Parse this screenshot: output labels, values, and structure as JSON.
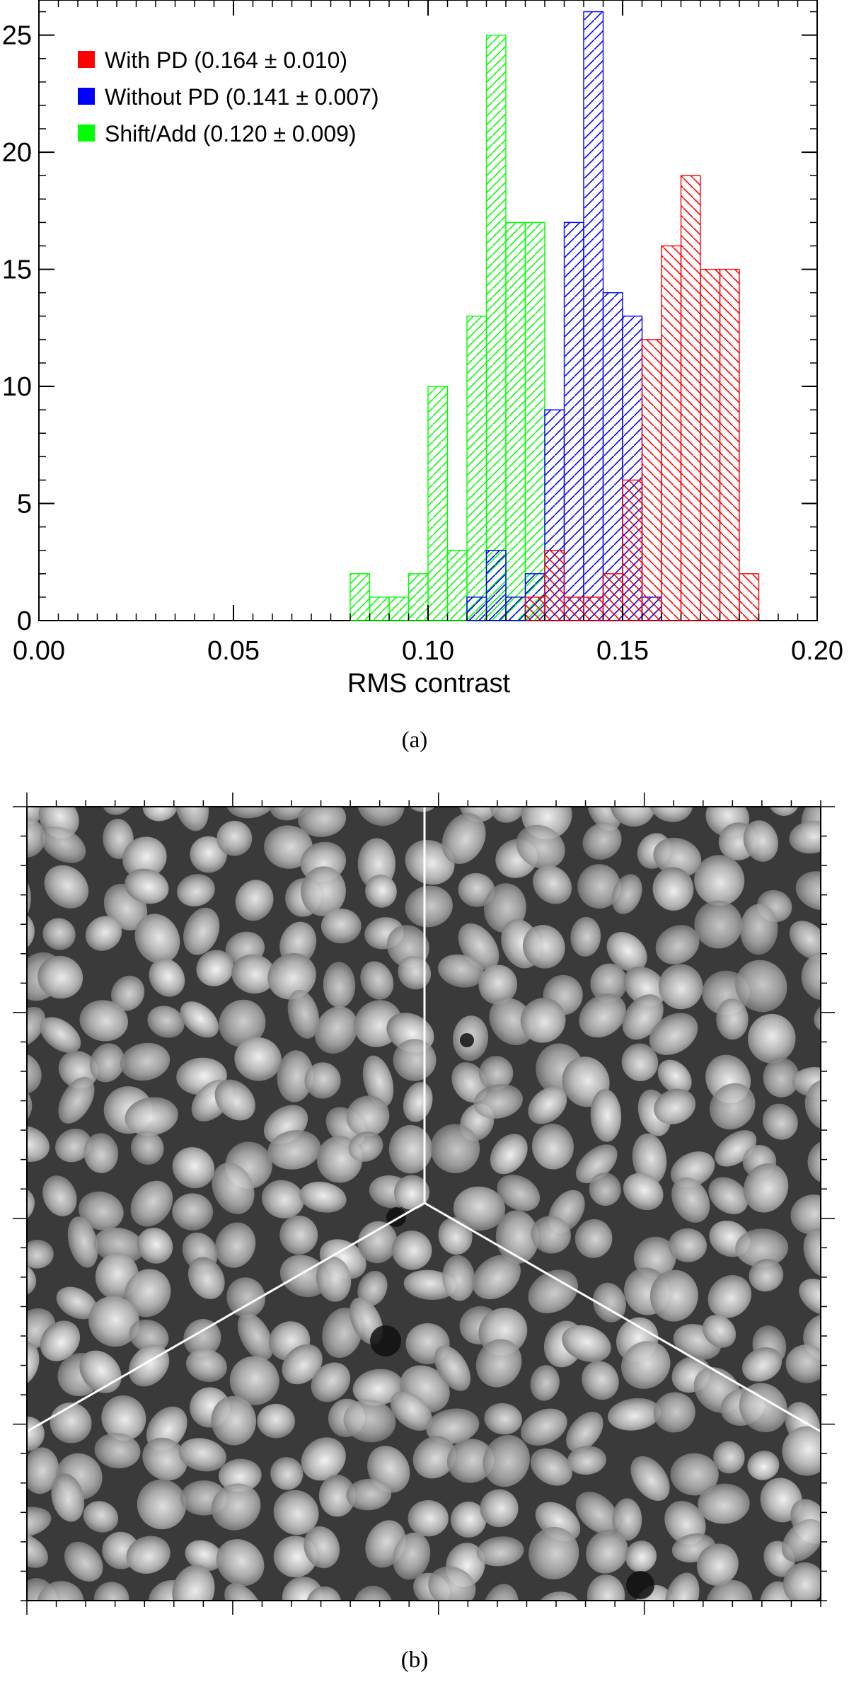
{
  "panel_a_caption": "(a)",
  "panel_b_caption": "(b)",
  "colors": {
    "with_pd": "#ff0000",
    "without_pd": "#0000ff",
    "shift_add": "#00ff00"
  },
  "chart_data": {
    "type": "bar",
    "subtype": "histogram",
    "xlabel": "RMS contrast",
    "ylabel": "",
    "xlim": [
      0.0,
      0.2
    ],
    "ylim": [
      0,
      26.5
    ],
    "x_ticks": [
      "0.00",
      "0.05",
      "0.10",
      "0.15",
      "0.20"
    ],
    "x_tick_values": [
      0.0,
      0.05,
      0.1,
      0.15,
      0.2
    ],
    "y_ticks": [
      "0",
      "5",
      "10",
      "15",
      "20",
      "25"
    ],
    "y_tick_values": [
      0,
      5,
      10,
      15,
      20,
      25
    ],
    "bin_width": 0.005,
    "legend_position": "top-left",
    "grid": false,
    "series": [
      {
        "name": "With PD (0.164 ± 0.010)",
        "color": "#ff0000",
        "hatch": "backslash",
        "bins": [
          [
            0.125,
            1
          ],
          [
            0.13,
            3
          ],
          [
            0.135,
            1
          ],
          [
            0.14,
            1
          ],
          [
            0.145,
            2
          ],
          [
            0.15,
            6
          ],
          [
            0.155,
            12
          ],
          [
            0.16,
            16
          ],
          [
            0.165,
            19
          ],
          [
            0.17,
            15
          ],
          [
            0.175,
            15
          ],
          [
            0.18,
            2
          ]
        ]
      },
      {
        "name": "Without PD (0.141 ± 0.007)",
        "color": "#0000ff",
        "hatch": "slash",
        "bins": [
          [
            0.11,
            1
          ],
          [
            0.115,
            3
          ],
          [
            0.12,
            1
          ],
          [
            0.125,
            2
          ],
          [
            0.13,
            9
          ],
          [
            0.135,
            17
          ],
          [
            0.14,
            26
          ],
          [
            0.145,
            14
          ],
          [
            0.15,
            13
          ],
          [
            0.155,
            1
          ]
        ]
      },
      {
        "name": "Shift/Add (0.120 ± 0.009)",
        "color": "#00ff00",
        "hatch": "slash",
        "bins": [
          [
            0.08,
            2
          ],
          [
            0.085,
            1
          ],
          [
            0.09,
            1
          ],
          [
            0.095,
            2
          ],
          [
            0.1,
            10
          ],
          [
            0.105,
            3
          ],
          [
            0.11,
            13
          ],
          [
            0.115,
            25
          ],
          [
            0.12,
            17
          ],
          [
            0.125,
            17
          ]
        ]
      }
    ]
  }
}
